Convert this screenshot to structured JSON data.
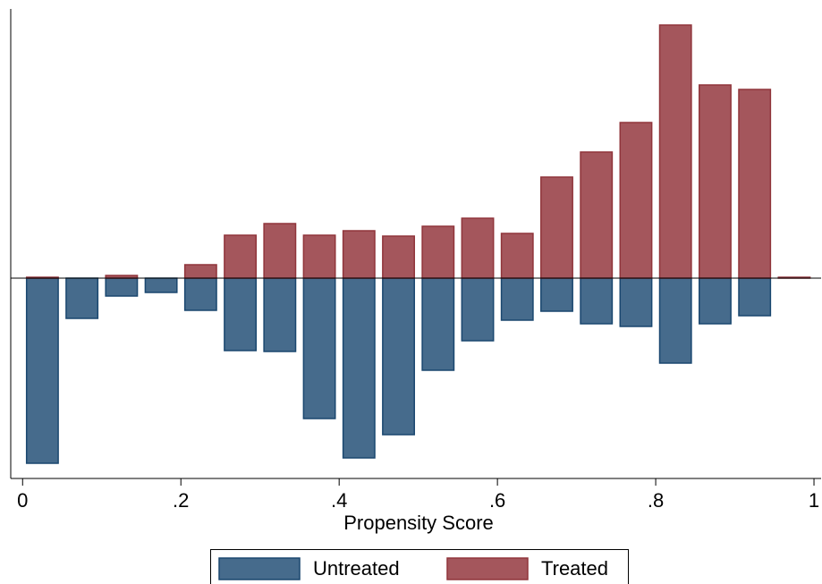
{
  "chart_data": {
    "type": "histogram",
    "xlabel": "Propensity Score",
    "bins": [
      0,
      0.05,
      0.1,
      0.15,
      0.2,
      0.25,
      0.3,
      0.35,
      0.4,
      0.45,
      0.5,
      0.55,
      0.6,
      0.65,
      0.7,
      0.75,
      0.8,
      0.85,
      0.9,
      0.95,
      1
    ],
    "series": [
      {
        "name": "Untreated",
        "color": "#466b8c",
        "edge": "#1a476f",
        "values": [
          -207,
          -45,
          -20,
          -16,
          -36,
          -81,
          -82,
          -157,
          -201,
          -175,
          -103,
          -70,
          -47,
          -37,
          -51,
          -54,
          -95,
          -51,
          -42,
          0
        ]
      },
      {
        "name": "Treated",
        "color": "#a4565c",
        "edge": "#90353b",
        "values": [
          1,
          0,
          3,
          0,
          15,
          48,
          61,
          48,
          53,
          47,
          58,
          67,
          50,
          113,
          141,
          174,
          283,
          216,
          211,
          1
        ]
      }
    ],
    "xlim": [
      -0.015,
      1.009
    ],
    "ylim": [
      -224,
      296
    ],
    "xticks": [
      0,
      {
        "value": 0.2,
        "label": ".2"
      },
      {
        "value": 0.4,
        "label": ".4"
      },
      {
        "value": 0.6,
        "label": ".6"
      },
      {
        "value": 0.8,
        "label": ".8"
      },
      1
    ],
    "legend": "bottom"
  }
}
